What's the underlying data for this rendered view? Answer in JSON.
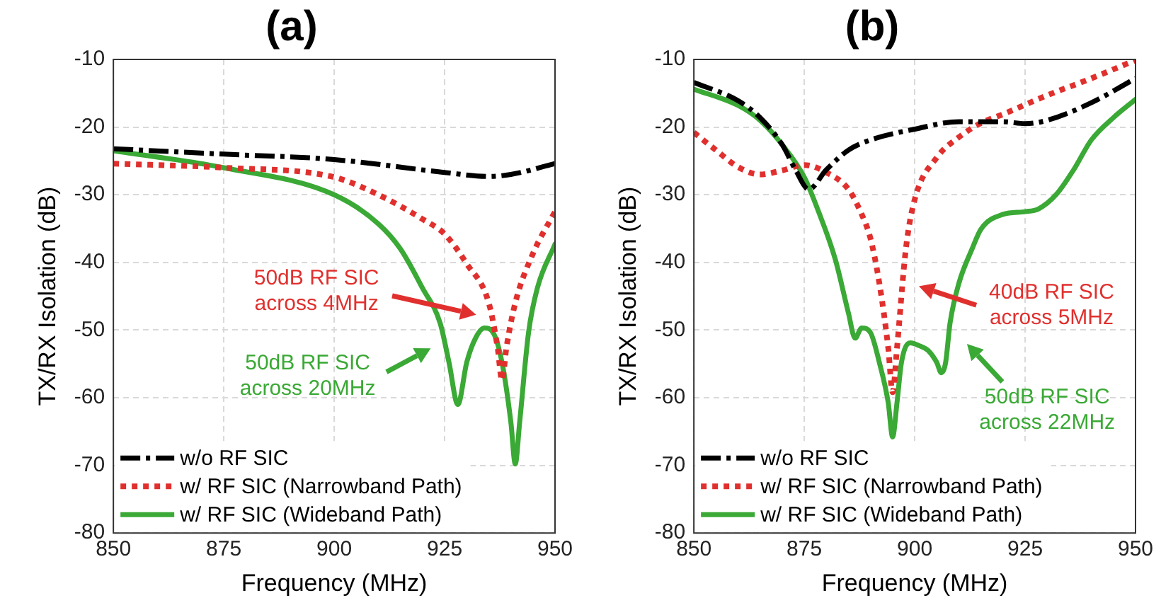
{
  "chart_data": [
    {
      "type": "line",
      "title": "(a)",
      "xlabel": "Frequency (MHz)",
      "ylabel": "TX/RX Isolation (dB)",
      "xlim": [
        850,
        950
      ],
      "xticks": [
        850,
        875,
        900,
        925,
        950
      ],
      "ylim": [
        -80,
        -10
      ],
      "yticks": [
        -80,
        -70,
        -60,
        -50,
        -40,
        -30,
        -20,
        -10
      ],
      "grid": true,
      "legend": "bottom left",
      "series": [
        {
          "name": "w/o RF SIC",
          "color": "#000000",
          "line_style": "dashed",
          "x": [
            850,
            875,
            900,
            925,
            935,
            940,
            950
          ],
          "values": [
            -23.2,
            -24,
            -24.8,
            -26.7,
            -27.3,
            -27,
            -25.4
          ]
        },
        {
          "name": "w/ RF SIC (Narrowband Path)",
          "color": "#e0302e",
          "line_style": "dotted",
          "x": [
            850,
            875,
            900,
            910,
            920,
            925,
            930,
            935,
            937,
            938,
            939,
            941,
            945,
            950
          ],
          "values": [
            -25.4,
            -26,
            -27.4,
            -30,
            -33.6,
            -35.8,
            -40.2,
            -46,
            -52.6,
            -57.4,
            -52.6,
            -46,
            -38.7,
            -32.5
          ]
        },
        {
          "name": "w/ RF SIC (Wideband Path)",
          "color": "#3aa935",
          "line_style": "solid",
          "x": [
            850,
            875,
            900,
            910,
            915,
            920,
            924,
            926,
            928,
            930,
            932,
            934,
            936,
            938,
            940,
            941,
            942,
            944,
            946,
            950
          ],
          "values": [
            -23.5,
            -26,
            -30,
            -34.3,
            -38,
            -43.8,
            -49,
            -54.8,
            -61,
            -54.8,
            -51.2,
            -49.7,
            -50.4,
            -54.8,
            -63.6,
            -69.8,
            -63.6,
            -50.4,
            -43.8,
            -37.3
          ]
        }
      ],
      "annotations": [
        "50dB RF SIC across 4MHz",
        "50dB RF SIC across 20MHz"
      ]
    },
    {
      "type": "line",
      "title": "(b)",
      "xlabel": "Frequency (MHz)",
      "ylabel": "TX/RX Isolation (dB)",
      "xlim": [
        850,
        950
      ],
      "xticks": [
        850,
        875,
        900,
        925,
        950
      ],
      "ylim": [
        -80,
        -10
      ],
      "yticks": [
        -80,
        -70,
        -60,
        -50,
        -40,
        -30,
        -20,
        -10
      ],
      "grid": true,
      "legend": "bottom left",
      "series": [
        {
          "name": "w/o RF SIC",
          "color": "#000000",
          "line_style": "dashed",
          "x": [
            850,
            860,
            865,
            870,
            873,
            876,
            880,
            885,
            890,
            900,
            910,
            920,
            925,
            930,
            940,
            950
          ],
          "values": [
            -13.4,
            -16.1,
            -18.6,
            -22.6,
            -26.3,
            -29.2,
            -26.3,
            -23.4,
            -21.9,
            -20.3,
            -19.2,
            -19.2,
            -19.5,
            -19,
            -16.4,
            -12.8
          ]
        },
        {
          "name": "w/ RF SIC (Narrowband Path)",
          "color": "#e0302e",
          "line_style": "dotted",
          "x": [
            850,
            855,
            860,
            865,
            870,
            875,
            880,
            885,
            888,
            890,
            892,
            894,
            895,
            896,
            898,
            900,
            905,
            910,
            915,
            920,
            930,
            940,
            950
          ],
          "values": [
            -20.8,
            -23.4,
            -25.9,
            -27,
            -26.4,
            -25.6,
            -26.7,
            -29.2,
            -32.9,
            -36.5,
            -43.1,
            -52.6,
            -59.2,
            -52.6,
            -38,
            -30.7,
            -24.5,
            -21.5,
            -19.4,
            -18.1,
            -15.3,
            -12.8,
            -10.1
          ]
        },
        {
          "name": "w/ RF SIC (Wideband Path)",
          "color": "#3aa935",
          "line_style": "solid",
          "x": [
            850,
            860,
            865,
            870,
            875,
            878,
            882,
            885,
            886.5,
            888,
            890,
            892,
            894,
            895,
            896,
            897,
            899,
            901,
            903,
            905,
            906,
            907,
            908,
            910,
            913,
            915,
            920,
            925,
            928,
            932,
            936,
            940,
            945,
            950
          ],
          "values": [
            -14.4,
            -16.8,
            -19,
            -22.6,
            -27.4,
            -32.1,
            -39.5,
            -47.5,
            -51.2,
            -49.7,
            -50.4,
            -54.8,
            -60.7,
            -65.8,
            -60.7,
            -54.8,
            -51.9,
            -52.3,
            -53,
            -54.8,
            -56.3,
            -54.8,
            -49,
            -43.1,
            -38,
            -35.1,
            -32.9,
            -32.5,
            -32.1,
            -30,
            -26.3,
            -21.9,
            -18.6,
            -15.9
          ]
        }
      ],
      "annotations": [
        "40dB RF SIC across 5MHz",
        "50dB RF SIC across 22MHz"
      ]
    }
  ]
}
